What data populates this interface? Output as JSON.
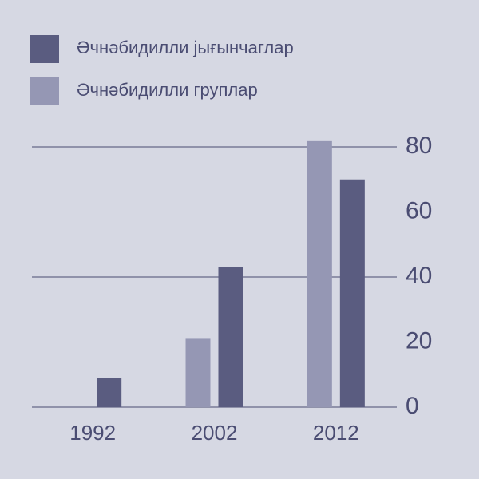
{
  "chart_data": {
    "type": "bar",
    "categories": [
      "1992",
      "2002",
      "2012"
    ],
    "series": [
      {
        "name": "Әчнәбидилли јығынчаглар",
        "color": "#5a5c80",
        "values": [
          9,
          43,
          70
        ]
      },
      {
        "name": "Әчнәбидилли груплар",
        "color": "#9597b4",
        "values": [
          null,
          21,
          82
        ]
      }
    ],
    "ylim": [
      0,
      80
    ],
    "yticks": [
      0,
      20,
      40,
      60,
      80
    ],
    "grid": true
  }
}
